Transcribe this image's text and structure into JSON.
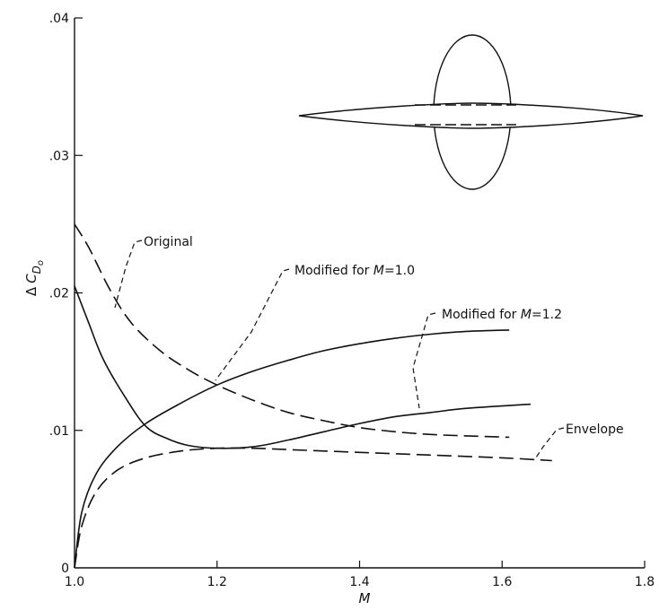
{
  "chart_data": {
    "type": "line",
    "title": "",
    "xlabel": "M",
    "ylabel_prefix": "Δ",
    "ylabel_main": "C",
    "ylabel_sub": "D",
    "ylabel_subsub": "o",
    "xlim": [
      1.0,
      1.8
    ],
    "ylim": [
      0,
      0.04
    ],
    "grid": false,
    "x_ticks": [
      {
        "value": 1.0,
        "label": "1.0"
      },
      {
        "value": 1.2,
        "label": "1.2"
      },
      {
        "value": 1.4,
        "label": "1.4"
      },
      {
        "value": 1.6,
        "label": "1.6"
      },
      {
        "value": 1.8,
        "label": "1.8"
      }
    ],
    "y_ticks": [
      {
        "value": 0.0,
        "label": "0"
      },
      {
        "value": 0.01,
        "label": ".01"
      },
      {
        "value": 0.02,
        "label": ".02"
      },
      {
        "value": 0.03,
        "label": ".03"
      },
      {
        "value": 0.04,
        "label": ".04"
      }
    ],
    "series": [
      {
        "key": "original",
        "style": "dashed",
        "points": [
          [
            1.0,
            0.025
          ],
          [
            1.02,
            0.0233
          ],
          [
            1.05,
            0.0202
          ],
          [
            1.08,
            0.0178
          ],
          [
            1.12,
            0.0158
          ],
          [
            1.16,
            0.0144
          ],
          [
            1.2,
            0.0133
          ],
          [
            1.25,
            0.0122
          ],
          [
            1.3,
            0.0113
          ],
          [
            1.35,
            0.0107
          ],
          [
            1.4,
            0.0102
          ],
          [
            1.45,
            0.0099
          ],
          [
            1.5,
            0.0097
          ],
          [
            1.55,
            0.0096
          ],
          [
            1.61,
            0.0095
          ]
        ]
      },
      {
        "key": "modified_m10",
        "style": "solid",
        "points": [
          [
            1.0,
            0.0
          ],
          [
            1.01,
            0.004
          ],
          [
            1.03,
            0.0068
          ],
          [
            1.06,
            0.0088
          ],
          [
            1.1,
            0.0105
          ],
          [
            1.15,
            0.012
          ],
          [
            1.2,
            0.0133
          ],
          [
            1.25,
            0.0143
          ],
          [
            1.3,
            0.0151
          ],
          [
            1.35,
            0.0158
          ],
          [
            1.4,
            0.0163
          ],
          [
            1.45,
            0.0167
          ],
          [
            1.5,
            0.017
          ],
          [
            1.55,
            0.0172
          ],
          [
            1.61,
            0.0173
          ]
        ]
      },
      {
        "key": "modified_m12",
        "style": "solid",
        "points": [
          [
            1.0,
            0.0205
          ],
          [
            1.02,
            0.0178
          ],
          [
            1.04,
            0.0152
          ],
          [
            1.07,
            0.0125
          ],
          [
            1.1,
            0.0103
          ],
          [
            1.13,
            0.0094
          ],
          [
            1.16,
            0.0089
          ],
          [
            1.2,
            0.0087
          ],
          [
            1.25,
            0.0088
          ],
          [
            1.3,
            0.0093
          ],
          [
            1.35,
            0.0099
          ],
          [
            1.4,
            0.0105
          ],
          [
            1.45,
            0.011
          ],
          [
            1.5,
            0.0113
          ],
          [
            1.55,
            0.0116
          ],
          [
            1.64,
            0.0119
          ]
        ]
      },
      {
        "key": "envelope",
        "style": "dashed",
        "points": [
          [
            1.0,
            0.0
          ],
          [
            1.01,
            0.003
          ],
          [
            1.03,
            0.0055
          ],
          [
            1.06,
            0.0071
          ],
          [
            1.1,
            0.008
          ],
          [
            1.15,
            0.0085
          ],
          [
            1.2,
            0.0087
          ],
          [
            1.25,
            0.0087
          ],
          [
            1.3,
            0.0086
          ],
          [
            1.4,
            0.0084
          ],
          [
            1.5,
            0.0082
          ],
          [
            1.6,
            0.008
          ],
          [
            1.67,
            0.0078
          ]
        ]
      }
    ],
    "annotations": [
      {
        "key": "original",
        "text": "Original",
        "italic_part": ""
      },
      {
        "key": "modified_m10",
        "text": "Modified for ",
        "italic_part": "M",
        "suffix": "=1.0"
      },
      {
        "key": "modified_m12",
        "text": "Modified for ",
        "italic_part": "M",
        "suffix": "=1.2"
      },
      {
        "key": "envelope",
        "text": "Envelope",
        "italic_part": ""
      }
    ],
    "inset": {
      "description_name": "body-planform-sketch",
      "shapes": [
        "wing-lens",
        "fuselage-oval",
        "modification-dashes"
      ]
    }
  }
}
